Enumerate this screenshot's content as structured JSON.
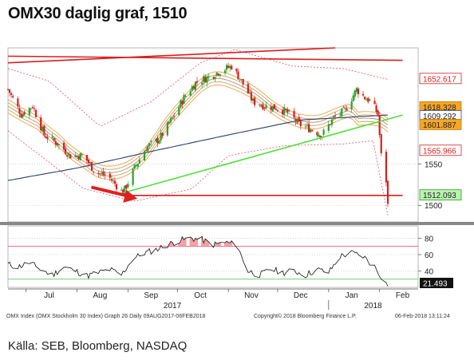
{
  "title": "OMX30 daglig graf, 1510",
  "source": "Källa: SEB, Bloomberg, NASDAQ",
  "footer": {
    "left": "OMX Index (OMX Stockholm 30 Index) Graph 26  Daily 09AUG2017-06FEB2018",
    "center": "Copyright© 2018 Bloomberg Finance L.P.",
    "right": "06-Feb-2018 13:11:24"
  },
  "chart_data": [
    {
      "type": "candlestick",
      "title": "",
      "x_range": [
        "2017-06-20",
        "2018-02-06"
      ],
      "ylim": [
        1480,
        1690
      ],
      "y_ticks": [
        1500,
        1550
      ],
      "month_ticks": [
        {
          "label": "Jul",
          "date": "2017-07-15"
        },
        {
          "label": "Aug",
          "date": "2017-08-15"
        },
        {
          "label": "Sep",
          "date": "2017-09-15"
        },
        {
          "label": "Oct",
          "date": "2017-10-15"
        },
        {
          "label": "Nov",
          "date": "2017-11-15"
        },
        {
          "label": "Dec",
          "date": "2017-12-15"
        },
        {
          "label": "Jan",
          "date": "2018-01-15"
        },
        {
          "label": "Feb",
          "date": "2018-02-15"
        }
      ],
      "year_labels": [
        {
          "label": "2017",
          "date": "2017-09-28"
        },
        {
          "label": "2018",
          "date": "2018-01-28"
        }
      ],
      "price_path": [
        [
          "2017-06-20",
          1640
        ],
        [
          "2017-06-28",
          1610
        ],
        [
          "2017-07-05",
          1620
        ],
        [
          "2017-07-12",
          1585
        ],
        [
          "2017-07-20",
          1575
        ],
        [
          "2017-07-28",
          1560
        ],
        [
          "2017-08-05",
          1560
        ],
        [
          "2017-08-12",
          1540
        ],
        [
          "2017-08-20",
          1535
        ],
        [
          "2017-08-29",
          1515
        ],
        [
          "2017-09-05",
          1545
        ],
        [
          "2017-09-12",
          1570
        ],
        [
          "2017-09-20",
          1580
        ],
        [
          "2017-09-28",
          1605
        ],
        [
          "2017-10-05",
          1630
        ],
        [
          "2017-10-12",
          1648
        ],
        [
          "2017-10-20",
          1655
        ],
        [
          "2017-10-27",
          1662
        ],
        [
          "2017-11-03",
          1668
        ],
        [
          "2017-11-09",
          1650
        ],
        [
          "2017-11-16",
          1625
        ],
        [
          "2017-11-23",
          1620
        ],
        [
          "2017-11-30",
          1618
        ],
        [
          "2017-12-07",
          1612
        ],
        [
          "2017-12-14",
          1598
        ],
        [
          "2017-12-21",
          1592
        ],
        [
          "2017-12-28",
          1585
        ],
        [
          "2018-01-04",
          1605
        ],
        [
          "2018-01-11",
          1615
        ],
        [
          "2018-01-18",
          1640
        ],
        [
          "2018-01-23",
          1630
        ],
        [
          "2018-01-27",
          1625
        ],
        [
          "2018-01-31",
          1610
        ],
        [
          "2018-02-02",
          1560
        ],
        [
          "2018-02-05",
          1530
        ],
        [
          "2018-02-06",
          1500
        ]
      ],
      "moving_average_long": [
        [
          "2017-06-20",
          1530
        ],
        [
          "2017-08-01",
          1545
        ],
        [
          "2017-09-15",
          1565
        ],
        [
          "2017-11-01",
          1585
        ],
        [
          "2017-12-15",
          1603
        ],
        [
          "2018-02-06",
          1609
        ]
      ],
      "bollinger_upper": [
        [
          "2017-06-20",
          1665
        ],
        [
          "2017-07-15",
          1650
        ],
        [
          "2017-08-15",
          1595
        ],
        [
          "2017-09-15",
          1625
        ],
        [
          "2017-10-15",
          1672
        ],
        [
          "2017-11-05",
          1688
        ],
        [
          "2017-12-10",
          1668
        ],
        [
          "2018-01-10",
          1665
        ],
        [
          "2018-02-06",
          1652
        ]
      ],
      "bollinger_lower": [
        [
          "2017-06-20",
          1590
        ],
        [
          "2017-08-05",
          1520
        ],
        [
          "2017-09-05",
          1505
        ],
        [
          "2017-10-10",
          1520
        ],
        [
          "2017-11-01",
          1560
        ],
        [
          "2017-12-05",
          1572
        ],
        [
          "2018-01-10",
          1574
        ],
        [
          "2018-01-28",
          1578
        ],
        [
          "2018-02-06",
          1488
        ]
      ],
      "trend_lines": [
        {
          "color": "#d81e1e",
          "points": [
            [
              "2017-06-20",
              1680
            ],
            [
              "2018-02-15",
              1675
            ]
          ]
        },
        {
          "color": "#d81e1e",
          "points": [
            [
              "2017-06-20",
              1672
            ],
            [
              "2018-01-05",
              1690
            ]
          ]
        },
        {
          "color": "#4de03a",
          "points": [
            [
              "2017-08-29",
              1515
            ],
            [
              "2018-02-15",
              1609
            ]
          ]
        },
        {
          "color": "#d81e1e",
          "points": [
            [
              "2017-08-29",
              1512
            ],
            [
              "2018-02-15",
              1512
            ]
          ]
        }
      ],
      "value_labels": [
        {
          "text": "1652.617",
          "value": 1652.617,
          "bg": "#ffffff",
          "color": "#d81e1e",
          "border": "#d81e1e"
        },
        {
          "text": "1618.328",
          "value": 1618.328,
          "bg": "#f5a623",
          "color": "#222",
          "border": "#c07a10"
        },
        {
          "text": "1609.292",
          "value": 1609.292,
          "bg": "#ffffff",
          "color": "#222",
          "border": "#2c4a7a"
        },
        {
          "text": "1601.887",
          "value": 1601.887,
          "bg": "#f5a623",
          "color": "#222",
          "border": "#c07a10"
        },
        {
          "text": "1565.966",
          "value": 1565.966,
          "bg": "#ffffff",
          "color": "#d81e1e",
          "border": "#d81e1e"
        },
        {
          "text": "1512.093",
          "value": 1512.093,
          "bg": "#b9f2b1",
          "color": "#222",
          "border": "#3a9a2a"
        }
      ]
    },
    {
      "type": "line",
      "title": "",
      "ylim": [
        20,
        95
      ],
      "y_ticks": [
        40,
        60,
        80
      ],
      "overbought": 70,
      "oversold": 30,
      "rsi_path": [
        [
          "2017-06-20",
          48
        ],
        [
          "2017-06-26",
          45
        ],
        [
          "2017-07-03",
          50
        ],
        [
          "2017-07-10",
          42
        ],
        [
          "2017-07-17",
          35
        ],
        [
          "2017-07-24",
          45
        ],
        [
          "2017-07-31",
          40
        ],
        [
          "2017-08-07",
          34
        ],
        [
          "2017-08-14",
          38
        ],
        [
          "2017-08-21",
          42
        ],
        [
          "2017-08-28",
          35
        ],
        [
          "2017-09-04",
          55
        ],
        [
          "2017-09-11",
          62
        ],
        [
          "2017-09-18",
          66
        ],
        [
          "2017-09-25",
          72
        ],
        [
          "2017-10-02",
          77
        ],
        [
          "2017-10-09",
          80
        ],
        [
          "2017-10-16",
          78
        ],
        [
          "2017-10-23",
          72
        ],
        [
          "2017-10-30",
          75
        ],
        [
          "2017-11-06",
          72
        ],
        [
          "2017-11-13",
          40
        ],
        [
          "2017-11-20",
          35
        ],
        [
          "2017-11-27",
          42
        ],
        [
          "2017-12-04",
          38
        ],
        [
          "2017-12-11",
          40
        ],
        [
          "2017-12-18",
          35
        ],
        [
          "2017-12-25",
          42
        ],
        [
          "2018-01-01",
          38
        ],
        [
          "2018-01-08",
          58
        ],
        [
          "2018-01-15",
          62
        ],
        [
          "2018-01-22",
          58
        ],
        [
          "2018-01-29",
          45
        ],
        [
          "2018-02-06",
          21.493
        ]
      ],
      "value_label": {
        "text": "21.493",
        "value": 21.493,
        "bg": "#111",
        "color": "#fff"
      }
    }
  ]
}
